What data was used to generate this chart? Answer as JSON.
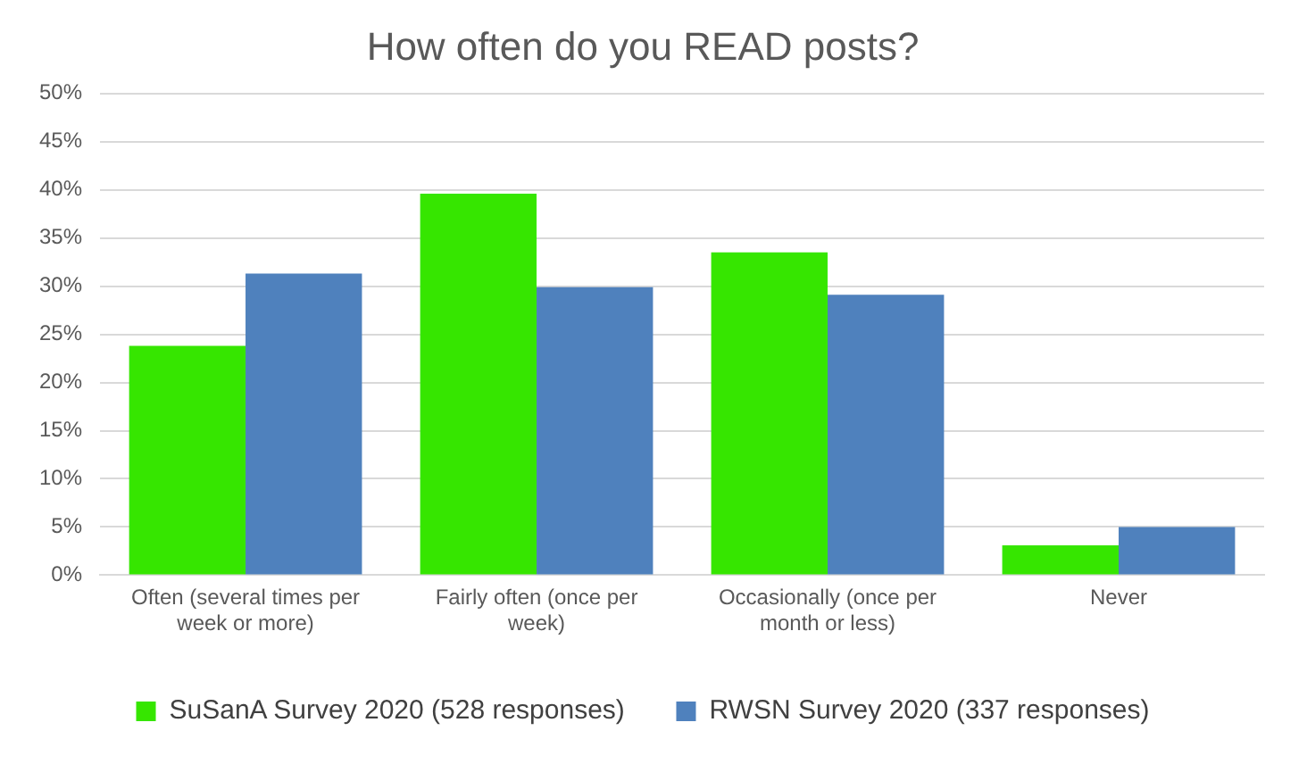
{
  "chart_data": {
    "type": "bar",
    "title": "How often do you READ posts?",
    "categories": [
      "Often (several times per week or more)",
      "Fairly often (once per week)",
      "Occasionally (once per month or less)",
      "Never"
    ],
    "series": [
      {
        "name": "SuSanA Survey 2020 (528 responses)",
        "color": "#36e600",
        "values": [
          23.8,
          39.6,
          33.5,
          3.1
        ]
      },
      {
        "name": "RWSN Survey 2020 (337 responses)",
        "color": "#4f81bd",
        "values": [
          31.3,
          29.9,
          29.1,
          5.0
        ]
      }
    ],
    "ylim": [
      0,
      50
    ],
    "yticks": [
      {
        "value": 0,
        "label": "0%"
      },
      {
        "value": 5,
        "label": "5%"
      },
      {
        "value": 10,
        "label": "10%"
      },
      {
        "value": 15,
        "label": "15%"
      },
      {
        "value": 20,
        "label": "20%"
      },
      {
        "value": 25,
        "label": "25%"
      },
      {
        "value": 30,
        "label": "30%"
      },
      {
        "value": 35,
        "label": "35%"
      },
      {
        "value": 40,
        "label": "40%"
      },
      {
        "value": 45,
        "label": "45%"
      },
      {
        "value": 50,
        "label": "50%"
      }
    ],
    "grid": "y",
    "legend": "bottom"
  }
}
